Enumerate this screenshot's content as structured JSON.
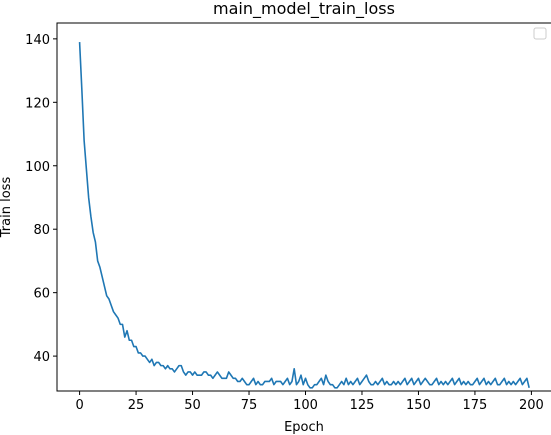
{
  "chart_data": {
    "type": "line",
    "title": "main_model_train_loss",
    "xlabel": "Epoch",
    "ylabel": "Train loss",
    "xlim": [
      -10,
      210
    ],
    "ylim": [
      29,
      145
    ],
    "xticks": [
      0,
      25,
      50,
      75,
      100,
      125,
      150,
      175,
      200
    ],
    "yticks": [
      40,
      60,
      80,
      100,
      120,
      140
    ],
    "grid": false,
    "legend": {
      "placement": "top-right",
      "entries": []
    },
    "series": [
      {
        "color": "#1f77b4",
        "x": [
          0,
          1,
          2,
          3,
          4,
          5,
          6,
          7,
          8,
          9,
          10,
          11,
          12,
          13,
          14,
          15,
          16,
          17,
          18,
          19,
          20,
          21,
          22,
          23,
          24,
          25,
          26,
          27,
          28,
          29,
          30,
          31,
          32,
          33,
          34,
          35,
          36,
          37,
          38,
          39,
          40,
          41,
          42,
          43,
          44,
          45,
          46,
          47,
          48,
          49,
          50,
          51,
          52,
          53,
          54,
          55,
          56,
          57,
          58,
          59,
          60,
          61,
          62,
          63,
          64,
          65,
          66,
          67,
          68,
          69,
          70,
          71,
          72,
          73,
          74,
          75,
          76,
          77,
          78,
          79,
          80,
          81,
          82,
          83,
          84,
          85,
          86,
          87,
          88,
          89,
          90,
          91,
          92,
          93,
          94,
          95,
          96,
          97,
          98,
          99,
          100,
          101,
          102,
          103,
          104,
          105,
          106,
          107,
          108,
          109,
          110,
          111,
          112,
          113,
          114,
          115,
          116,
          117,
          118,
          119,
          120,
          121,
          122,
          123,
          124,
          125,
          126,
          127,
          128,
          129,
          130,
          131,
          132,
          133,
          134,
          135,
          136,
          137,
          138,
          139,
          140,
          141,
          142,
          143,
          144,
          145,
          146,
          147,
          148,
          149,
          150,
          151,
          152,
          153,
          154,
          155,
          156,
          157,
          158,
          159,
          160,
          161,
          162,
          163,
          164,
          165,
          166,
          167,
          168,
          169,
          170,
          171,
          172,
          173,
          174,
          175,
          176,
          177,
          178,
          179,
          180,
          181,
          182,
          183,
          184,
          185,
          186,
          187,
          188,
          189,
          190,
          191,
          192,
          193,
          194,
          195,
          196,
          197,
          198,
          199
        ],
        "y": [
          139,
          124,
          108,
          99,
          90,
          84,
          79,
          76,
          70,
          68,
          65,
          62,
          59,
          58,
          56,
          54,
          53,
          52,
          50,
          50,
          46,
          48,
          45,
          45,
          43,
          43,
          41,
          41,
          40,
          40,
          39,
          38,
          39,
          37,
          38,
          38,
          37,
          37,
          36,
          37,
          36,
          36,
          35,
          36,
          37,
          37,
          35,
          34,
          35,
          35,
          34,
          35,
          34,
          34,
          34,
          35,
          35,
          34,
          34,
          33,
          34,
          35,
          34,
          33,
          33,
          33,
          35,
          34,
          33,
          33,
          32,
          32,
          33,
          32,
          31,
          31,
          32,
          33,
          31,
          32,
          31,
          31,
          32,
          32,
          32,
          33,
          31,
          32,
          32,
          32,
          31,
          32,
          33,
          31,
          32,
          36,
          31,
          32,
          34,
          31,
          33,
          31,
          30,
          30,
          31,
          31,
          32,
          33,
          31,
          34,
          32,
          31,
          31,
          30,
          30,
          31,
          32,
          31,
          33,
          31,
          32,
          31,
          32,
          33,
          31,
          32,
          33,
          34,
          32,
          31,
          31,
          32,
          31,
          32,
          33,
          31,
          32,
          31,
          31,
          32,
          31,
          32,
          31,
          32,
          33,
          31,
          32,
          33,
          31,
          32,
          33,
          31,
          32,
          33,
          32,
          31,
          31,
          32,
          33,
          31,
          32,
          31,
          32,
          31,
          32,
          33,
          31,
          32,
          33,
          31,
          32,
          31,
          32,
          31,
          31,
          32,
          33,
          31,
          32,
          33,
          31,
          32,
          31,
          32,
          33,
          31,
          31,
          32,
          33,
          31,
          32,
          31,
          32,
          31,
          32,
          33,
          31,
          32,
          33,
          30
        ]
      }
    ]
  }
}
